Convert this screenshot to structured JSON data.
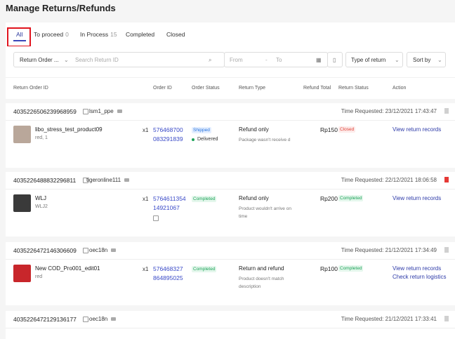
{
  "header": {
    "title": "Manage Returns/Refunds"
  },
  "tabs": [
    {
      "label": "All"
    },
    {
      "label": "To proceed",
      "count": 0
    },
    {
      "label": "In Process",
      "count": 15
    },
    {
      "label": "Completed"
    },
    {
      "label": "Closed"
    }
  ],
  "filters": {
    "search_type": "Return Order ...",
    "search_placeholder": "Search Return ID",
    "from": "From",
    "to": "To",
    "type_of_return": "Type of return",
    "sort_by": "Sort by"
  },
  "columns": [
    "Return Order ID",
    "Order ID",
    "Order Status",
    "Return Type",
    "Refund Total",
    "Return Status",
    "Action"
  ],
  "orders": [
    {
      "return_id": "4035226506239968959",
      "buyer": "lsm1_ppe",
      "time_requested": "Time Requested: 23/12/2021 17:43:47",
      "flag_color": "#d0d0d0",
      "product": "libo_stress_test_product09",
      "variation": "red, 1",
      "image_color": "#b9a79a",
      "quantity": "x1",
      "order_id": [
        "576468700",
        "083291839"
      ],
      "order_status": "Shipped",
      "status_color": "#2673dd",
      "status_bg": "#e5efff",
      "delivery": "Delivered",
      "return_type": "Refund only",
      "reason": "Package wasn't receive d",
      "refund_total": "Rp150",
      "return_status": "Closed",
      "return_status_color": "#e0443a",
      "return_status_bg": "#fdebea",
      "actions": [
        "View return records"
      ]
    },
    {
      "return_id": "4035226488832296811",
      "buyer": "tigeronline111",
      "time_requested": "Time Requested: 22/12/2021 18:06:58",
      "flag_color": "#e53935",
      "product": "WLJ",
      "variation": "WLJ2",
      "image_color": "#3a3a3a",
      "quantity": "x1",
      "order_id": [
        "5764611354",
        "14921067"
      ],
      "order_status": "Completed",
      "status_color": "#1fa35a",
      "status_bg": "#e4f7ec",
      "return_type": "Refund only",
      "reason": "Product wouldn't arrive on time",
      "refund_total": "Rp200",
      "return_status": "Completed",
      "return_status_color": "#1fa35a",
      "return_status_bg": "#e4f7ec",
      "actions": [
        "View return records"
      ]
    },
    {
      "return_id": "4035226472146306609",
      "buyer": "oec18n",
      "time_requested": "Time Requested: 21/12/2021 17:34:49",
      "flag_color": "#d0d0d0",
      "product": "New COD_Pro001_edit01",
      "variation": "red",
      "image_color": "#c8262b",
      "quantity": "x1",
      "order_id": [
        "576468327",
        "864895025"
      ],
      "order_status": "Completed",
      "status_color": "#1fa35a",
      "status_bg": "#e4f7ec",
      "return_type": "Return and refund",
      "reason": "Product doesn't match description",
      "refund_total": "Rp100",
      "return_status": "Completed",
      "return_status_color": "#1fa35a",
      "return_status_bg": "#e4f7ec",
      "actions": [
        "View return records",
        "Check return logistics"
      ]
    },
    {
      "return_id": "4035226472129136177",
      "buyer": "oec18n",
      "time_requested": "Time Requested: 21/12/2021 17:33:41",
      "flag_color": "#d0d0d0"
    }
  ]
}
